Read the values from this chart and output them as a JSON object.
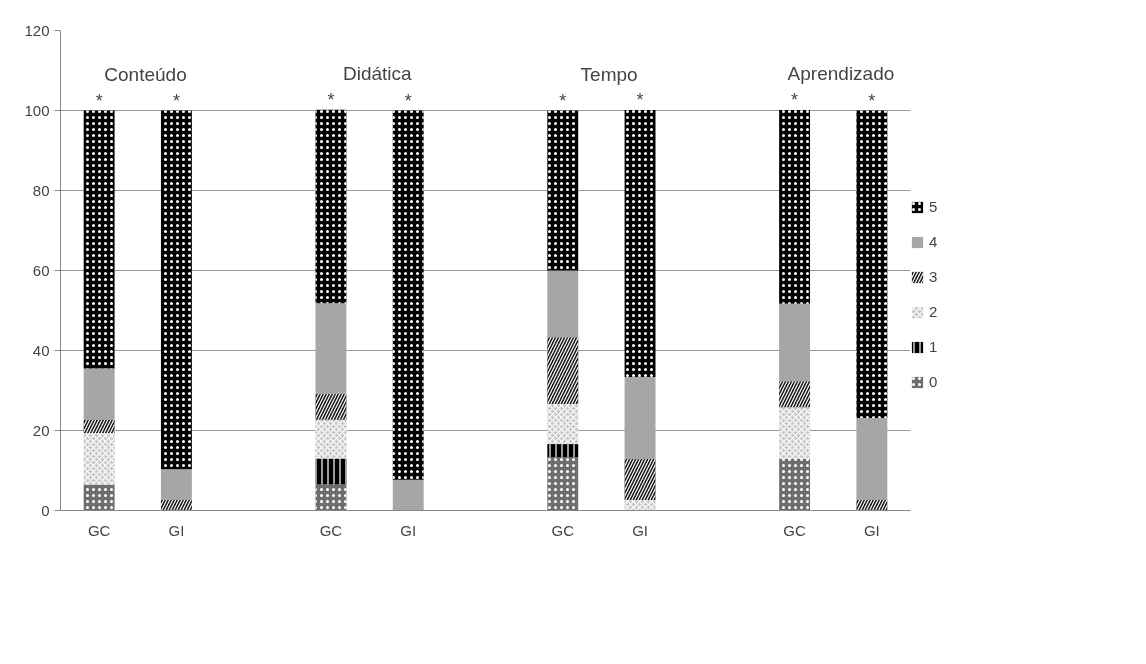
{
  "chart_data": {
    "type": "bar",
    "stacked": true,
    "categories": [
      "GC",
      "GI",
      null,
      "GC",
      "GI",
      null,
      "GC",
      "GI",
      null,
      "GC",
      "GI"
    ],
    "series": [
      {
        "name": "0",
        "color": "#6e6e6e",
        "values": [
          6.5,
          0,
          null,
          6.5,
          0,
          null,
          13.3,
          0,
          null,
          12.9,
          0
        ]
      },
      {
        "name": "1",
        "color": "#000000",
        "values": [
          0,
          0,
          null,
          6.5,
          0,
          null,
          3.3,
          0,
          null,
          0,
          0
        ]
      },
      {
        "name": "2",
        "color": "#c8c8c8",
        "values": [
          12.9,
          0,
          null,
          9.7,
          0,
          null,
          10,
          2.6,
          null,
          12.9,
          0
        ]
      },
      {
        "name": "3",
        "color": "#1a1a1a",
        "values": [
          3.2,
          2.6,
          null,
          6.5,
          0,
          null,
          16.7,
          10.3,
          null,
          6.5,
          2.6
        ]
      },
      {
        "name": "4",
        "color": "#a6a6a6",
        "values": [
          12.9,
          7.7,
          null,
          22.6,
          7.7,
          null,
          16.7,
          20.5,
          null,
          19.4,
          20.5
        ]
      },
      {
        "name": "5",
        "color": "#000000",
        "values": [
          64.5,
          89.7,
          null,
          48.4,
          92.3,
          null,
          40,
          66.7,
          null,
          48.4,
          76.9
        ]
      }
    ],
    "ylim": [
      0,
      120
    ],
    "yticks": [
      0,
      20,
      40,
      60,
      80,
      100,
      120
    ],
    "grid": "y",
    "legend": "right",
    "annotations": [
      "Conteúdo",
      "Didática",
      "Tempo",
      "Aprendizado",
      "*",
      "*",
      "*",
      "*",
      "*",
      "*",
      "*",
      "*"
    ]
  }
}
